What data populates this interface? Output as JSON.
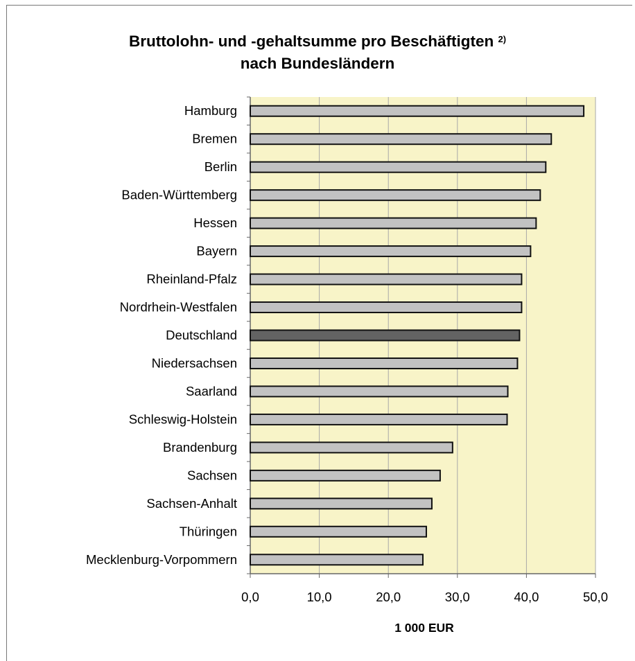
{
  "chart_data": {
    "type": "bar",
    "orientation": "horizontal",
    "title_line1": "Bruttolohn- und -gehaltsumme pro Beschäftigten",
    "title_note": "2)",
    "title_line2": "nach Bundesländern",
    "xlabel": "1 000 EUR",
    "xlim": [
      0,
      50
    ],
    "xticks": [
      "0,0",
      "10,0",
      "20,0",
      "30,0",
      "40,0",
      "50,0"
    ],
    "grid": true,
    "categories": [
      "Hamburg",
      "Bremen",
      "Berlin",
      "Baden-Württemberg",
      "Hessen",
      "Bayern",
      "Rheinland-Pfalz",
      "Nordrhein-Westfalen",
      "Deutschland",
      "Niedersachsen",
      "Saarland",
      "Schleswig-Holstein",
      "Brandenburg",
      "Sachsen",
      "Sachsen-Anhalt",
      "Thüringen",
      "Mecklenburg-Vorpommern"
    ],
    "values": [
      48.3,
      43.6,
      42.8,
      42.0,
      41.4,
      40.6,
      39.3,
      39.3,
      39.0,
      38.7,
      37.3,
      37.2,
      29.3,
      27.5,
      26.3,
      25.5,
      25.0
    ],
    "highlight": "Deutschland",
    "colors": {
      "plot_background": "#f8f4c8",
      "bar": "#c2c2c2",
      "bar_highlight": "#636363",
      "bar_border": "#111111",
      "gridline": "#a8a8a8"
    }
  }
}
